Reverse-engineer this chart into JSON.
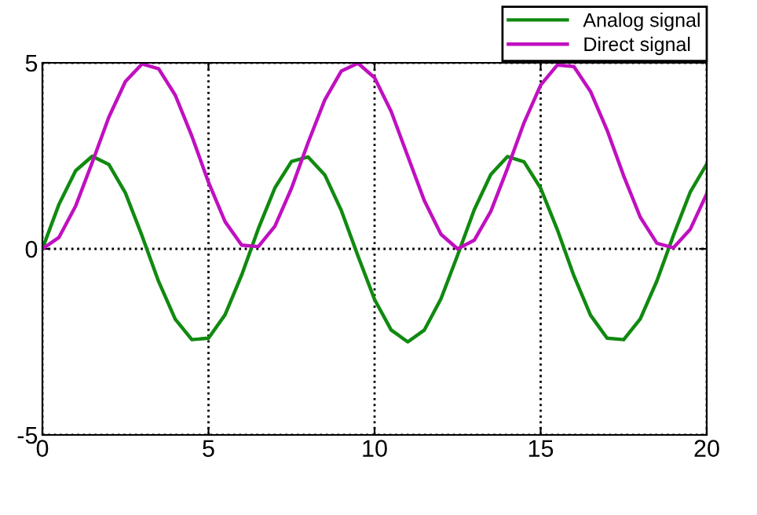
{
  "chart_data": {
    "type": "line",
    "x": [
      0,
      0.5,
      1,
      1.5,
      2,
      2.5,
      3,
      3.5,
      4,
      4.5,
      5,
      5.5,
      6,
      6.5,
      7,
      7.5,
      8,
      8.5,
      9,
      9.5,
      10,
      10.5,
      11,
      11.5,
      12,
      12.5,
      13,
      13.5,
      14,
      14.5,
      15,
      15.5,
      16,
      16.5,
      17,
      17.5,
      18,
      18.5,
      19,
      19.5,
      20
    ],
    "series": [
      {
        "name": "Analog signal",
        "color": "#108a10",
        "values": [
          0,
          1.2,
          2.1,
          2.49,
          2.27,
          1.5,
          0.35,
          -0.88,
          -1.89,
          -2.44,
          -2.4,
          -1.77,
          -0.7,
          0.54,
          1.64,
          2.35,
          2.47,
          1.99,
          1.03,
          -0.19,
          -1.36,
          -2.18,
          -2.5,
          -2.18,
          -1.34,
          -0.17,
          1.05,
          2.0,
          2.48,
          2.34,
          1.63,
          0.52,
          -0.72,
          -1.78,
          -2.4,
          -2.44,
          -1.88,
          -0.86,
          0.37,
          1.52,
          2.28
        ]
      },
      {
        "name": "Direct signal",
        "color": "#c010c0",
        "values": [
          0,
          0.31,
          1.15,
          2.32,
          3.54,
          4.5,
          4.97,
          4.84,
          4.13,
          3.03,
          1.79,
          0.73,
          0.1,
          0.06,
          0.61,
          1.63,
          2.86,
          4.0,
          4.78,
          4.99,
          4.6,
          3.69,
          2.49,
          1.29,
          0.39,
          0.0,
          0.23,
          1.01,
          2.16,
          3.39,
          4.4,
          4.94,
          4.9,
          4.23,
          3.19,
          1.96,
          0.85,
          0.15,
          0.03,
          0.52,
          1.48
        ]
      }
    ],
    "xlim": [
      0,
      20
    ],
    "ylim": [
      -5,
      5
    ],
    "xticks": [
      0,
      5,
      10,
      15,
      20
    ],
    "yticks": [
      -5,
      0,
      5
    ],
    "grid": true,
    "legend": "top right",
    "marker": "none",
    "line_style": "solid"
  }
}
